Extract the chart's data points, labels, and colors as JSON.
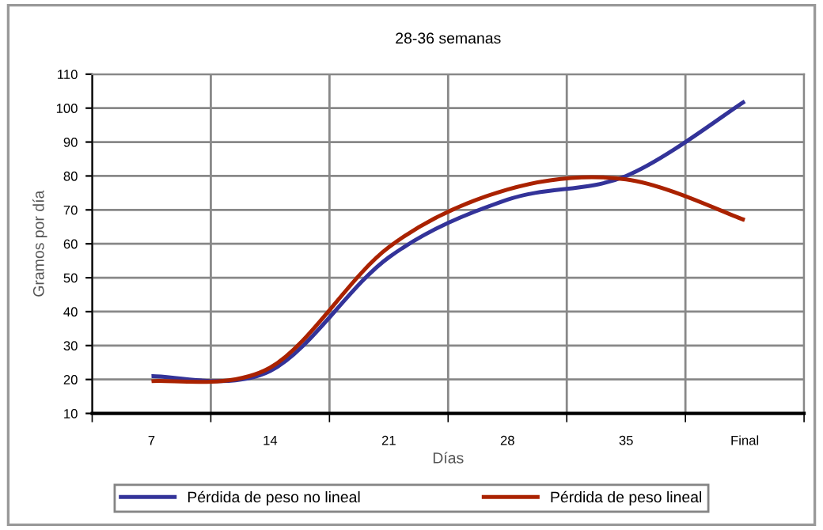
{
  "chart_data": {
    "type": "line",
    "title": "28-36 semanas",
    "xlabel": "Días",
    "ylabel": "Gramos por día",
    "categories": [
      "7",
      "14",
      "21",
      "28",
      "35",
      "Final"
    ],
    "series": [
      {
        "name": "Pérdida de peso no lineal",
        "color": "#333399",
        "values": [
          21,
          22.5,
          56,
          73,
          80,
          102
        ]
      },
      {
        "name": "Pérdida de peso lineal",
        "color": "#aa2200",
        "values": [
          19.5,
          23.5,
          59,
          76,
          79,
          67
        ]
      }
    ],
    "ylim": [
      10,
      110
    ],
    "yticks": [
      10,
      20,
      30,
      40,
      50,
      60,
      70,
      80,
      90,
      100,
      110
    ],
    "grid": true,
    "legend": "bottom",
    "marker": "none",
    "line_style": "solid"
  }
}
